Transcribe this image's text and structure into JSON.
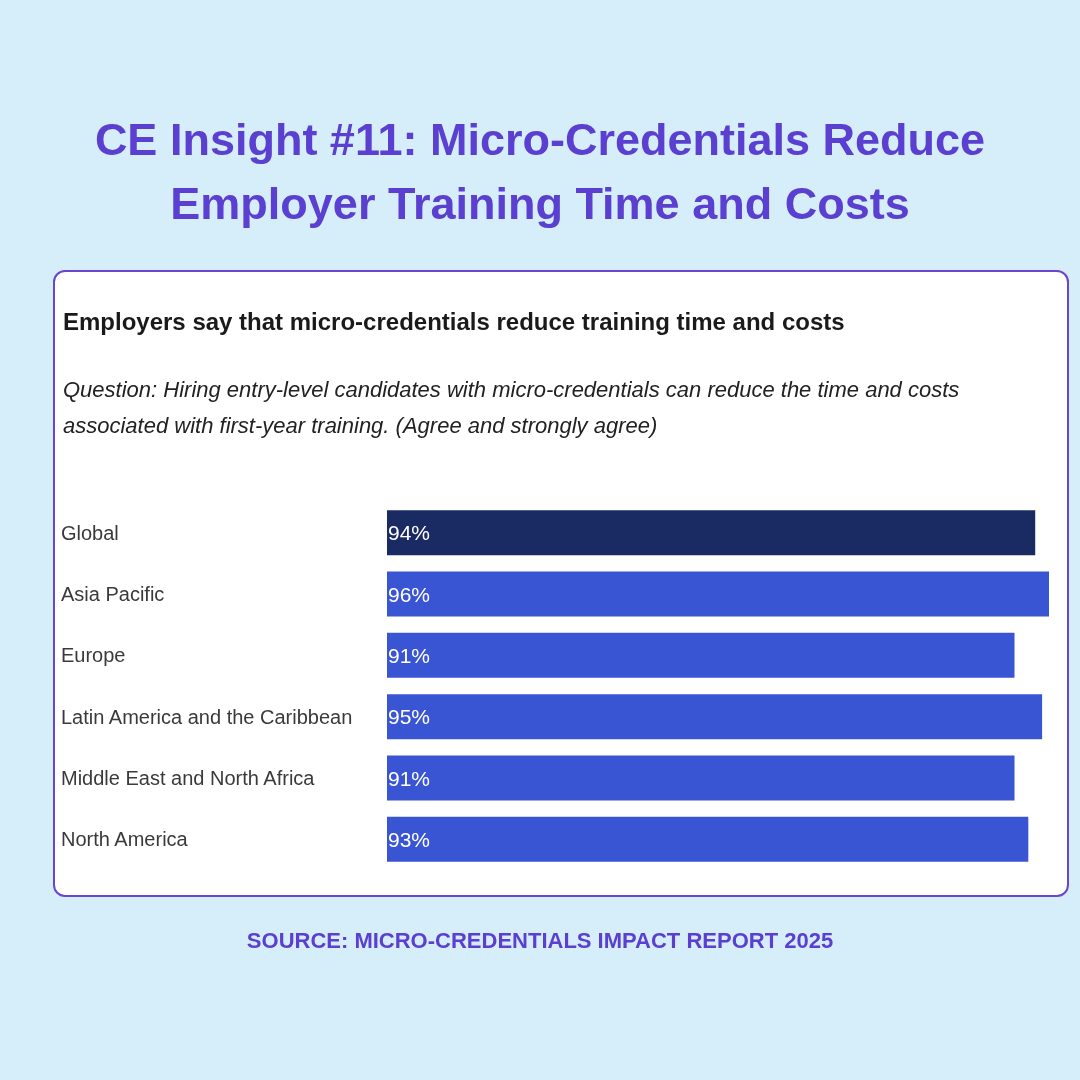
{
  "chart_data": {
    "type": "bar",
    "orientation": "horizontal",
    "title": "CE Insight #11: Micro-Credentials Reduce Employer Training Time and Costs",
    "subtitle": "Employers say that micro-credentials reduce training time and costs",
    "annotations": [
      "Question: Hiring entry-level candidates with micro-credentials can reduce the time and costs associated with first-year training. (Agree and strongly agree)",
      "SOURCE: MICRO-CREDENTIALS IMPACT REPORT 2025"
    ],
    "categories": [
      "Global",
      "Asia Pacific",
      "Europe",
      "Latin America and the Caribbean",
      "Middle East and North Africa",
      "North America"
    ],
    "values": [
      94,
      96,
      91,
      95,
      91,
      93
    ],
    "value_labels": [
      "94%",
      "96%",
      "91%",
      "95%",
      "91%",
      "93%"
    ],
    "colors": [
      "#1a2a63",
      "#3a55d4",
      "#3a55d4",
      "#3a55d4",
      "#3a55d4",
      "#3a55d4"
    ]
  }
}
